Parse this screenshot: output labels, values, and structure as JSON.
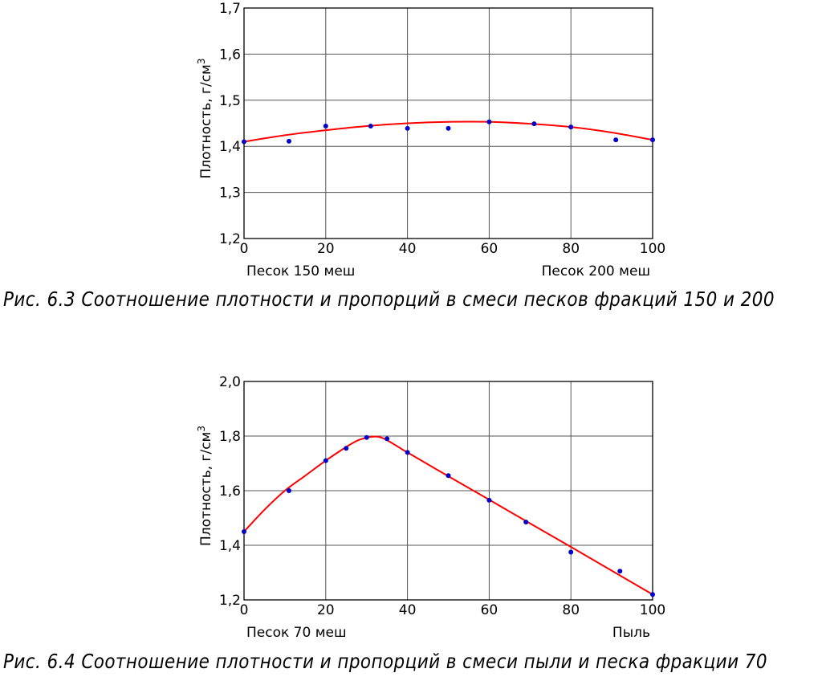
{
  "chart_data": [
    {
      "type": "scatter",
      "caption": "Рис. 6.3 Соотношение плотности и пропорций в смеси песков фракций 150 и 200",
      "ylabel": "Плотность, г/см",
      "ylabel_sup": "3",
      "xlim": [
        0,
        100
      ],
      "ylim": [
        1.2,
        1.7
      ],
      "xticks": [
        "0",
        "20",
        "40",
        "60",
        "80",
        "100"
      ],
      "yticks": [
        "1,2",
        "1,3",
        "1,4",
        "1,5",
        "1,6",
        "1,7"
      ],
      "x_left_label": "Песок 150 меш",
      "x_right_label": "Песок 200 меш",
      "grid": true,
      "colors": {
        "points": "#0000cc",
        "curve": "#ff0000",
        "grid": "#555555"
      },
      "series": [
        {
          "x": [
            0,
            11,
            20,
            31,
            40,
            50,
            60,
            71,
            80,
            91,
            100
          ],
          "y": [
            1.41,
            1.411,
            1.444,
            1.444,
            1.439,
            1.439,
            1.453,
            1.449,
            1.442,
            1.414,
            1.414
          ]
        }
      ],
      "fit": {
        "x": [
          0,
          10,
          20,
          30,
          40,
          50,
          60,
          70,
          80,
          90,
          100
        ],
        "y": [
          1.41,
          1.424,
          1.435,
          1.444,
          1.45,
          1.453,
          1.453,
          1.449,
          1.442,
          1.43,
          1.414
        ]
      }
    },
    {
      "type": "scatter",
      "caption": "Рис. 6.4 Соотношение плотности и пропорций в смеси пыли и песка фракции 70",
      "ylabel": "Плотность, г/см",
      "ylabel_sup": "3",
      "xlim": [
        0,
        100
      ],
      "ylim": [
        1.2,
        2.0
      ],
      "xticks": [
        "0",
        "20",
        "40",
        "60",
        "80",
        "100"
      ],
      "yticks": [
        "1,2",
        "1,4",
        "1,6",
        "1,8",
        "2,0"
      ],
      "x_left_label": "Песок 70 меш",
      "x_right_label": "Пыль",
      "grid": true,
      "colors": {
        "points": "#0000cc",
        "curve": "#ff0000",
        "grid": "#555555"
      },
      "series": [
        {
          "x": [
            0,
            11,
            20,
            25,
            30,
            35,
            40,
            50,
            60,
            69,
            80,
            92,
            100
          ],
          "y": [
            1.45,
            1.6,
            1.71,
            1.755,
            1.795,
            1.79,
            1.74,
            1.655,
            1.565,
            1.485,
            1.375,
            1.305,
            1.22
          ]
        }
      ],
      "fit": {
        "x": [
          0,
          5,
          10,
          15,
          20,
          25,
          28,
          31,
          33,
          35,
          38,
          40,
          50,
          60,
          70,
          80,
          90,
          100
        ],
        "y": [
          1.45,
          1.53,
          1.6,
          1.655,
          1.71,
          1.76,
          1.785,
          1.797,
          1.797,
          1.785,
          1.758,
          1.74,
          1.653,
          1.567,
          1.48,
          1.394,
          1.307,
          1.22
        ]
      }
    }
  ]
}
